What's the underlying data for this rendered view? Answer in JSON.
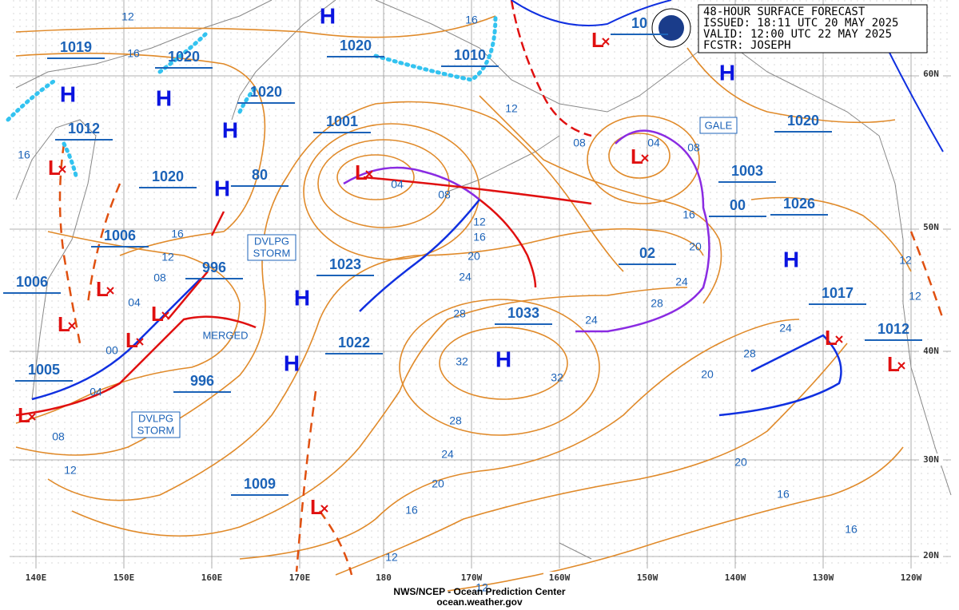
{
  "header": {
    "lines": [
      "48-HOUR SURFACE FORECAST",
      "ISSUED: 18:11 UTC 20 MAY 2025",
      "VALID:  12:00 UTC 22 MAY 2025",
      "FCSTR: JOSEPH"
    ]
  },
  "pressure_labels": [
    "1019",
    "1020",
    "1020",
    "1010",
    "10",
    "1020",
    "1012",
    "1001",
    "1020",
    "80",
    "1006",
    "996",
    "1023",
    "1006",
    "1033",
    "1022",
    "996",
    "1005",
    "1009",
    "1003",
    "00",
    "1026",
    "02",
    "1020",
    "1017",
    "1012"
  ],
  "isobar_labels": [
    "12",
    "16",
    "16",
    "16",
    "12",
    "08",
    "04",
    "00",
    "04",
    "08",
    "12",
    "16",
    "12",
    "08",
    "04",
    "08",
    "04",
    "08",
    "12",
    "16",
    "20",
    "24",
    "28",
    "32",
    "32",
    "28",
    "24",
    "20",
    "16",
    "12",
    "12",
    "16",
    "20",
    "24",
    "28",
    "24",
    "28",
    "20",
    "24",
    "20",
    "16",
    "16",
    "12",
    "12"
  ],
  "highs": [
    "H",
    "H",
    "H",
    "H",
    "H",
    "H",
    "H",
    "H",
    "H",
    "H"
  ],
  "lows": [
    "L",
    "L",
    "L",
    "L",
    "L",
    "L",
    "L",
    "L",
    "L",
    "L",
    "L",
    "L"
  ],
  "annotations": {
    "storm1": [
      "DVLPG",
      "STORM"
    ],
    "storm2": [
      "DVLPG",
      "STORM"
    ],
    "merged": "MERGED",
    "gale": "GALE"
  },
  "longitudes": [
    "140E",
    "150E",
    "160E",
    "170E",
    "180",
    "170W",
    "160W",
    "150W",
    "140W",
    "130W",
    "120W"
  ],
  "latitudes": [
    "60N",
    "50N",
    "40N",
    "30N",
    "20N"
  ],
  "footer": {
    "agency": "NWS/NCEP - Ocean Prediction Center",
    "site": "ocean.weather.gov"
  }
}
